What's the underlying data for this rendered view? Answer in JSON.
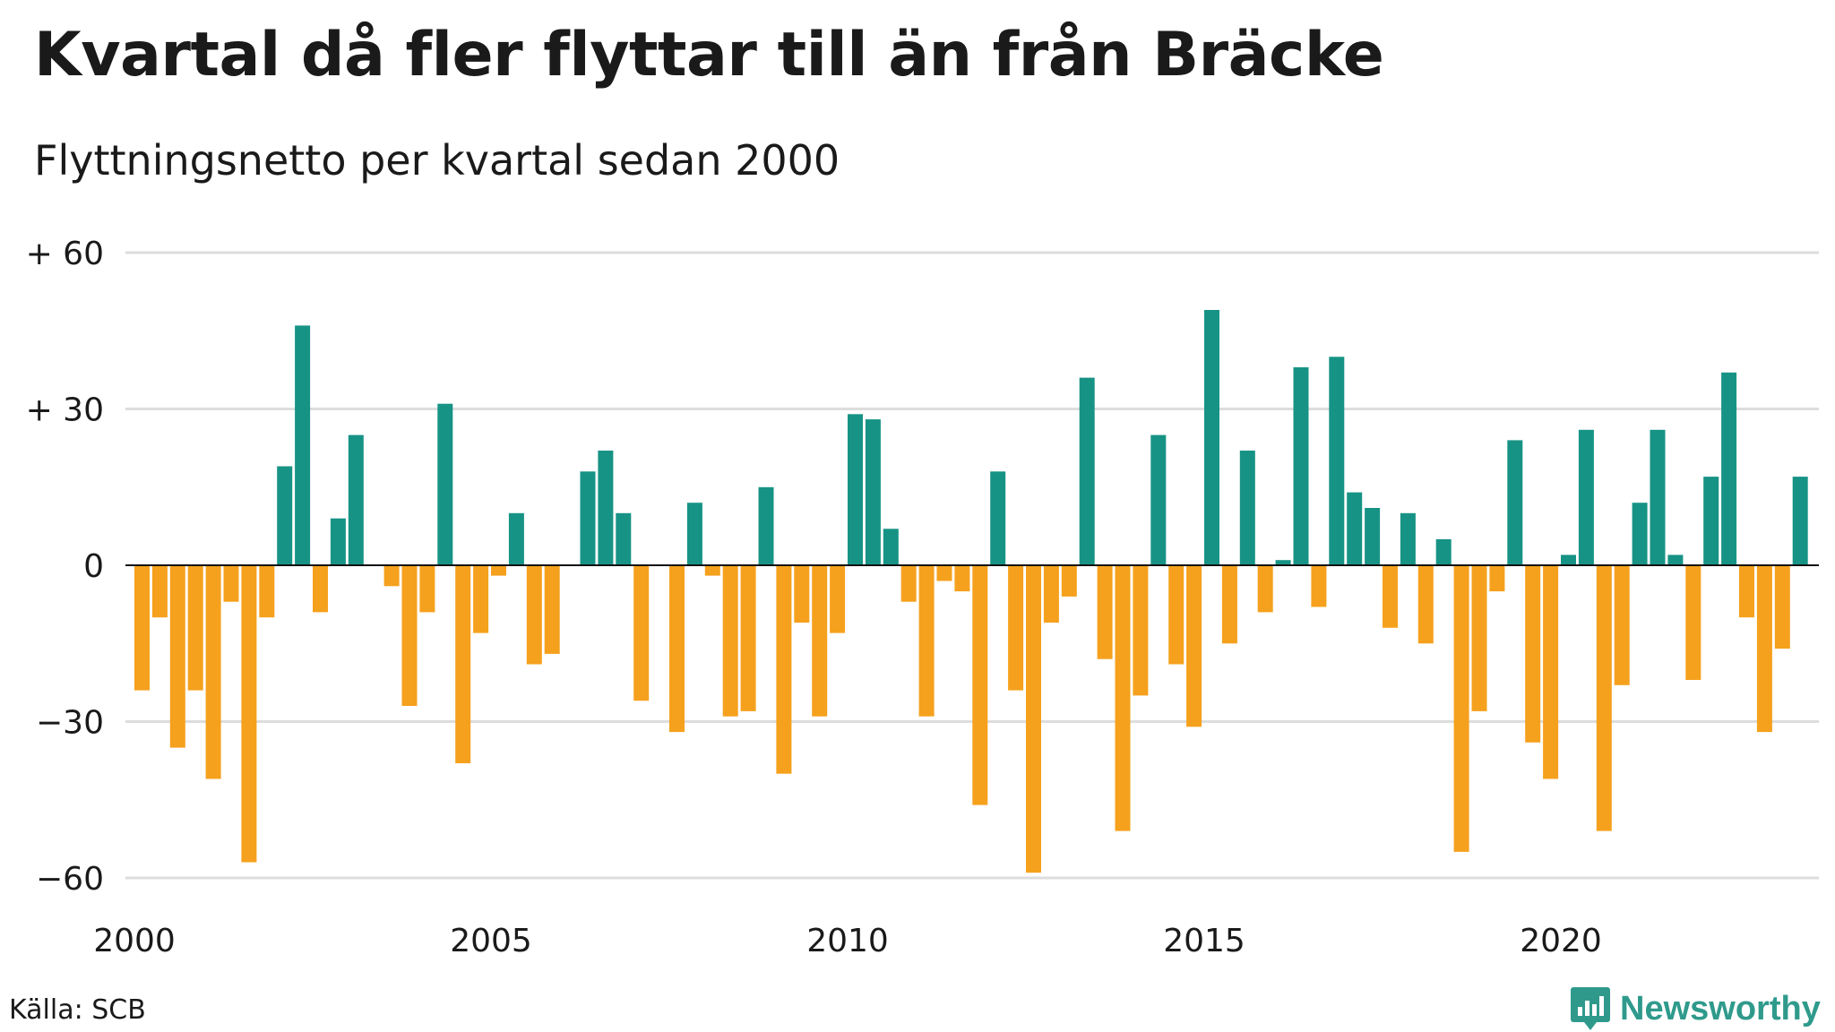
{
  "title": "Kvartal då fler flyttar till än från Bräcke",
  "subtitle": "Flyttningsnetto per kvartal sedan 2000",
  "source": "Källa: SCB",
  "brand": "Newsworthy",
  "colors": {
    "positive": "#179385",
    "negative": "#f5a11d",
    "grid": "#dddddd",
    "zero": "#111111",
    "brand": "#2f9a8c"
  },
  "chart_data": {
    "type": "bar",
    "x_start_year": 2000,
    "x_end": "2023 Q4",
    "ylim": [
      -60,
      60
    ],
    "yticks": [
      {
        "value": 60,
        "label": "+ 60"
      },
      {
        "value": 30,
        "label": "+ 30"
      },
      {
        "value": 0,
        "label": "0"
      },
      {
        "value": -30,
        "label": "−30"
      },
      {
        "value": -60,
        "label": "−60"
      }
    ],
    "xticks": [
      "2000",
      "2005",
      "2010",
      "2015",
      "2020"
    ],
    "grid": true,
    "legend": "none",
    "values": [
      -24,
      -10,
      -35,
      -24,
      -41,
      -7,
      -57,
      -10,
      19,
      46,
      -9,
      9,
      25,
      0,
      -4,
      -27,
      -9,
      31,
      -38,
      -13,
      -2,
      10,
      -19,
      -17,
      0,
      18,
      22,
      10,
      -26,
      0,
      -32,
      12,
      -2,
      -29,
      -28,
      15,
      -40,
      -11,
      -29,
      -13,
      29,
      28,
      7,
      -7,
      -29,
      -3,
      -5,
      -46,
      18,
      -24,
      -59,
      -11,
      -6,
      36,
      -18,
      -51,
      -25,
      25,
      -19,
      -31,
      49,
      -15,
      22,
      -9,
      1,
      38,
      -8,
      40,
      14,
      11,
      -12,
      10,
      -15,
      5,
      -55,
      -28,
      -5,
      24,
      -34,
      -41,
      2,
      26,
      -51,
      -23,
      12,
      26,
      2,
      -22,
      17,
      37,
      -10,
      -32,
      -16,
      17
    ]
  }
}
